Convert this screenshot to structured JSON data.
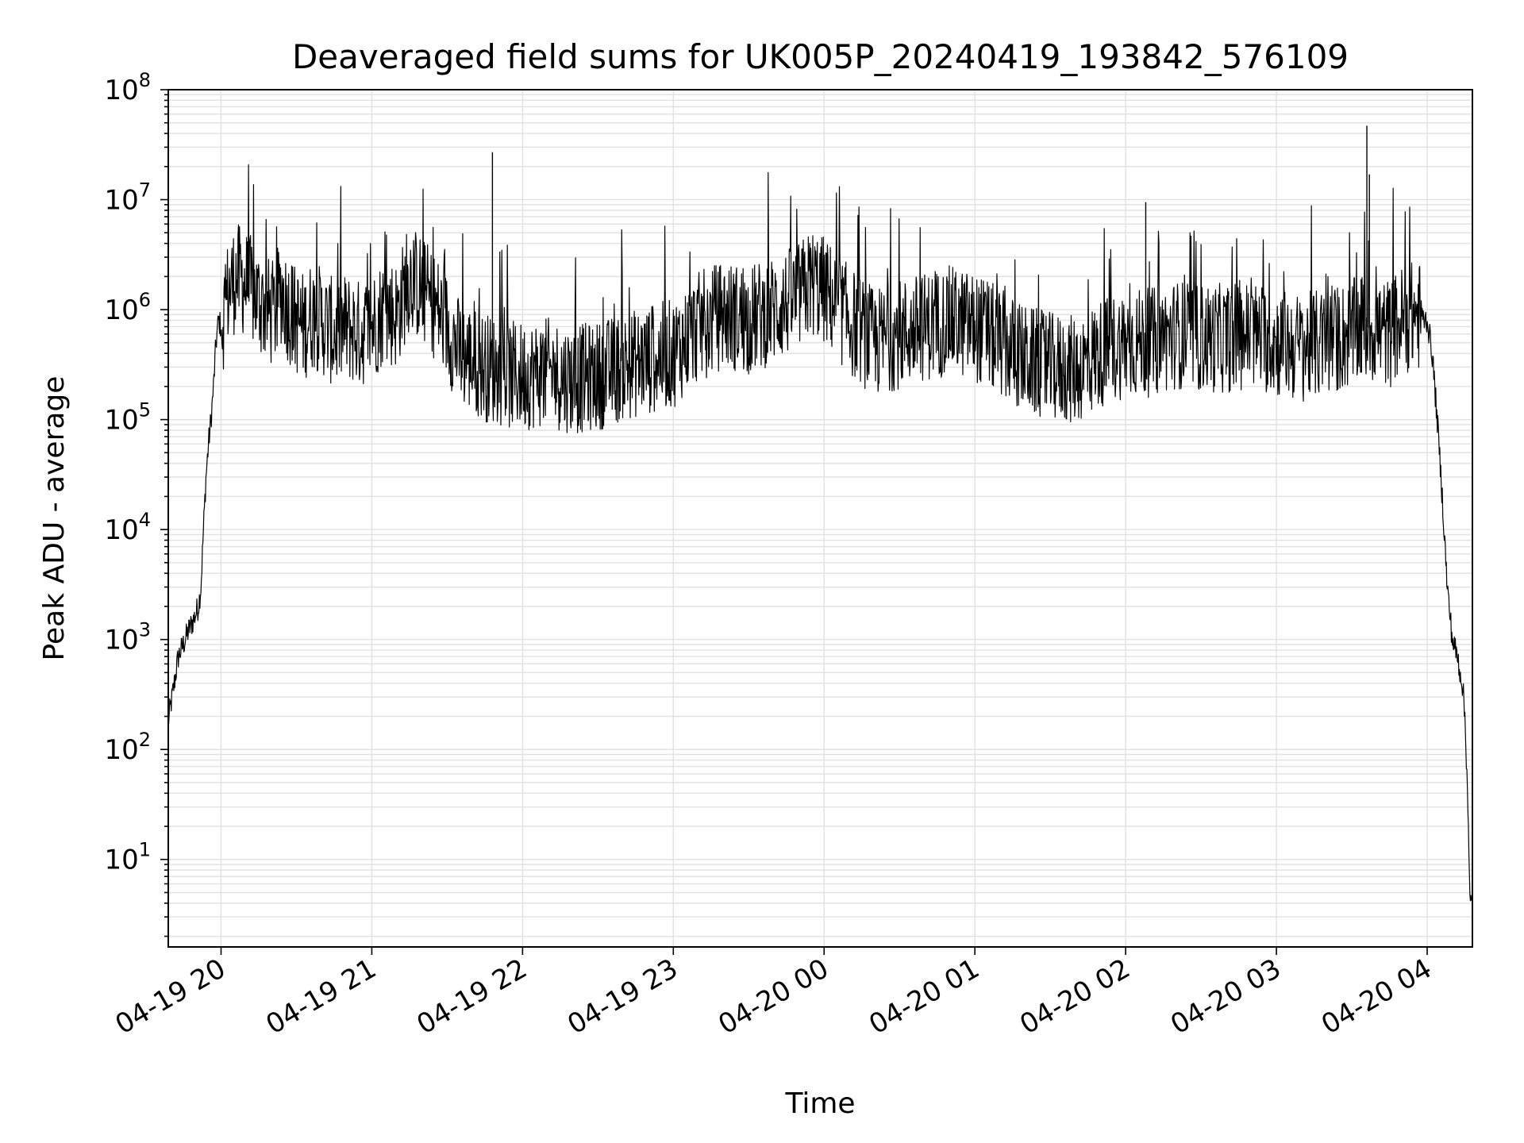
{
  "chart_data": {
    "type": "line",
    "title": "Deaveraged field sums for UK005P_20240419_193842_576109",
    "xlabel": "Time",
    "ylabel": "Peak ADU - average",
    "yscale": "log",
    "ylim": [
      1.6,
      100000000
    ],
    "xlim": [
      "2024-04-19 19:39",
      "2024-04-20 04:18"
    ],
    "grid": true,
    "line_color": "#000000",
    "x_ticks": [
      "04-19 20",
      "04-19 21",
      "04-19 22",
      "04-19 23",
      "04-20 00",
      "04-20 01",
      "04-20 02",
      "04-20 03",
      "04-20 04"
    ],
    "y_ticks": [
      {
        "value": 10,
        "base": "10",
        "exp": "1"
      },
      {
        "value": 100,
        "base": "10",
        "exp": "2"
      },
      {
        "value": 1000,
        "base": "10",
        "exp": "3"
      },
      {
        "value": 10000,
        "base": "10",
        "exp": "4"
      },
      {
        "value": 100000,
        "base": "10",
        "exp": "5"
      },
      {
        "value": 1000000,
        "base": "10",
        "exp": "6"
      },
      {
        "value": 10000000,
        "base": "10",
        "exp": "7"
      },
      {
        "value": 100000000,
        "base": "10",
        "exp": "8"
      }
    ],
    "series": [
      {
        "x": [
          "2024-04-19 19:39",
          "2024-04-19 19:41",
          "2024-04-19 19:43",
          "2024-04-19 19:45",
          "2024-04-19 19:47",
          "2024-04-19 19:49",
          "2024-04-19 19:51",
          "2024-04-19 19:52",
          "2024-04-19 19:53",
          "2024-04-19 19:54",
          "2024-04-19 19:55",
          "2024-04-19 19:56",
          "2024-04-19 19:57",
          "2024-04-19 19:58",
          "2024-04-19 19:59",
          "2024-04-19 20:00",
          "2024-04-19 20:03",
          "2024-04-19 20:06",
          "2024-04-19 20:09",
          "2024-04-19 20:12",
          "2024-04-19 20:15",
          "2024-04-19 20:18",
          "2024-04-19 20:21",
          "2024-04-19 20:24",
          "2024-04-19 20:27",
          "2024-04-19 20:30",
          "2024-04-19 20:33",
          "2024-04-19 20:36",
          "2024-04-19 20:40",
          "2024-04-19 20:45",
          "2024-04-19 20:50",
          "2024-04-19 20:55",
          "2024-04-19 21:00",
          "2024-04-19 21:05",
          "2024-04-19 21:10",
          "2024-04-19 21:15",
          "2024-04-19 21:20",
          "2024-04-19 21:25",
          "2024-04-19 21:30",
          "2024-04-19 21:35",
          "2024-04-19 21:40",
          "2024-04-19 21:45",
          "2024-04-19 21:50",
          "2024-04-19 21:55",
          "2024-04-19 22:00",
          "2024-04-19 22:10",
          "2024-04-19 22:20",
          "2024-04-19 22:30",
          "2024-04-19 22:40",
          "2024-04-19 22:50",
          "2024-04-19 23:00",
          "2024-04-19 23:10",
          "2024-04-19 23:20",
          "2024-04-19 23:30",
          "2024-04-19 23:40",
          "2024-04-19 23:50",
          "2024-04-19 23:55",
          "2024-04-20 00:00",
          "2024-04-20 00:10",
          "2024-04-20 00:20",
          "2024-04-20 00:30",
          "2024-04-20 00:40",
          "2024-04-20 00:50",
          "2024-04-20 01:00",
          "2024-04-20 01:10",
          "2024-04-20 01:20",
          "2024-04-20 01:30",
          "2024-04-20 01:40",
          "2024-04-20 01:50",
          "2024-04-20 02:00",
          "2024-04-20 02:10",
          "2024-04-20 02:20",
          "2024-04-20 02:30",
          "2024-04-20 02:40",
          "2024-04-20 02:50",
          "2024-04-20 03:00",
          "2024-04-20 03:10",
          "2024-04-20 03:20",
          "2024-04-20 03:30",
          "2024-04-20 03:35",
          "2024-04-20 03:40",
          "2024-04-20 03:45",
          "2024-04-20 03:50",
          "2024-04-20 03:55",
          "2024-04-20 04:00",
          "2024-04-20 04:02",
          "2024-04-20 04:04",
          "2024-04-20 04:06",
          "2024-04-20 04:08",
          "2024-04-20 04:10",
          "2024-04-20 04:12",
          "2024-04-20 04:14",
          "2024-04-20 04:15",
          "2024-04-20 04:16",
          "2024-04-20 04:17",
          "2024-04-20 04:18"
        ],
        "y": [
          180,
          350,
          700,
          900,
          1200,
          1500,
          2000,
          3000,
          10000,
          30000,
          60000,
          100000,
          200000,
          500000,
          800000,
          700000,
          1500000,
          2000000,
          1800000,
          1500000,
          1200000,
          1000000,
          900000,
          1500000,
          1000000,
          800000,
          700000,
          900000,
          800000,
          600000,
          700000,
          600000,
          700000,
          1000000,
          900000,
          2000000,
          1500000,
          1100000,
          700000,
          400000,
          350000,
          300000,
          280000,
          250000,
          250000,
          270000,
          230000,
          250000,
          300000,
          350000,
          400000,
          700000,
          900000,
          800000,
          1000000,
          1300000,
          1800000,
          1500000,
          800000,
          500000,
          600000,
          700000,
          800000,
          700000,
          500000,
          350000,
          300000,
          280000,
          400000,
          500000,
          500000,
          600000,
          550000,
          550000,
          600000,
          500000,
          450000,
          500000,
          600000,
          700000,
          650000,
          600000,
          800000,
          900000,
          800000,
          400000,
          100000,
          20000,
          3000,
          1000,
          700,
          400,
          200,
          50,
          4,
          4
        ]
      }
    ],
    "spikes": [
      {
        "x": "2024-04-19 21:48",
        "y": 27000000
      },
      {
        "x": "2024-04-20 02:08",
        "y": 9500000
      },
      {
        "x": "2024-04-20 03:36",
        "y": 47000000
      },
      {
        "x": "2024-04-20 03:37",
        "y": 17000000
      }
    ]
  }
}
